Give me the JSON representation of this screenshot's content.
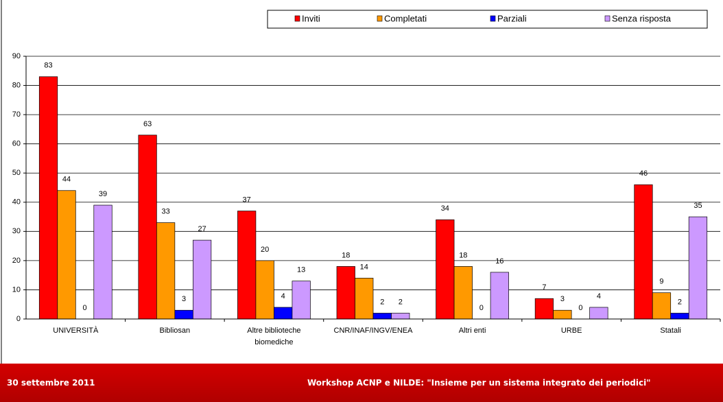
{
  "chart_data": {
    "type": "bar",
    "categories": [
      "UNIVERSITÀ",
      "Bibliosan",
      "Altre biblioteche biomediche",
      "CNR/INAF/INGV/ENEA",
      "Altri enti",
      "URBE",
      "Statali"
    ],
    "series": [
      {
        "name": "Inviti",
        "color": "#ff0000",
        "values": [
          83,
          63,
          37,
          18,
          34,
          7,
          46
        ]
      },
      {
        "name": "Completati",
        "color": "#ff9900",
        "values": [
          44,
          33,
          20,
          14,
          18,
          3,
          9
        ]
      },
      {
        "name": "Parziali",
        "color": "#0000ff",
        "values": [
          0,
          3,
          4,
          2,
          0,
          0,
          2
        ]
      },
      {
        "name": "Senza risposta",
        "color": "#cc99ff",
        "values": [
          39,
          27,
          13,
          2,
          16,
          4,
          35
        ]
      }
    ],
    "ylim": [
      0,
      90
    ],
    "yticks": [
      0,
      10,
      20,
      30,
      40,
      50,
      60,
      70,
      80,
      90
    ],
    "grid": true,
    "legend": "top-right"
  },
  "footer": {
    "date": "30 settembre 2011",
    "event": "Workshop ACNP e NILDE: \"Insieme per un sistema integrato dei periodici\""
  }
}
